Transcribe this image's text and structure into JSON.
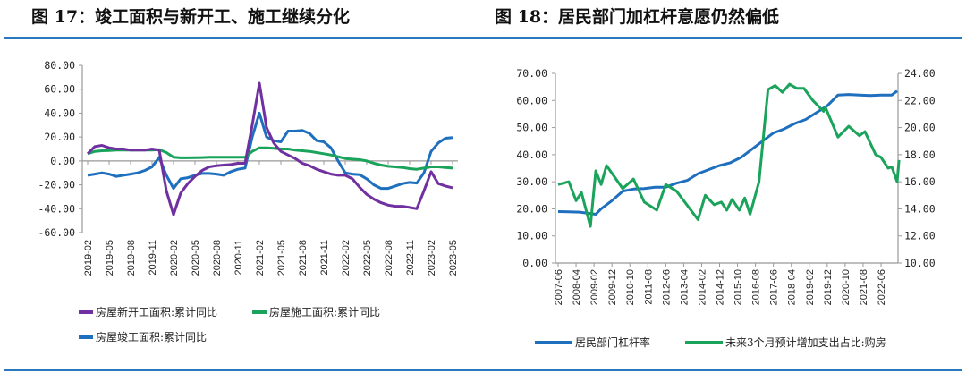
{
  "charts_header": {
    "left_title": "图 17：竣工面积与新开工、施工继续分化",
    "right_title": "图 18：居民部门加杠杆意愿仍然偏低"
  },
  "colors": {
    "rule": "#2a78c0",
    "purple": "#7030a0",
    "green": "#1aa35a",
    "blue": "#1f6fbf"
  },
  "chart_data": [
    {
      "type": "line",
      "title": "竣工面积与新开工、施工继续分化",
      "ylim": [
        -60,
        80
      ],
      "yticks": [
        "80.00",
        "60.00",
        "40.00",
        "20.00",
        "0.00",
        "-20.00",
        "-40.00",
        "-60.00"
      ],
      "x_start": "2019-02",
      "x_tick_labels": [
        "2019-02",
        "2019-05",
        "2019-08",
        "2019-11",
        "2020-02",
        "2020-05",
        "2020-08",
        "2020-11",
        "2021-02",
        "2021-05",
        "2021-08",
        "2021-11",
        "2022-02",
        "2022-05",
        "2022-08",
        "2022-11",
        "2023-02",
        "2023-05"
      ],
      "legend_placement": "bottom",
      "grid": false,
      "series": [
        {
          "name": "房屋新开工面积:累计同比",
          "color": "#7030a0",
          "values": [
            6,
            12,
            13,
            11,
            10,
            10,
            9,
            9,
            9,
            10,
            9,
            -25,
            -45,
            -27,
            -19,
            -13,
            -8,
            -5,
            -4,
            -3.5,
            -3,
            -2,
            -2,
            30,
            65,
            28,
            15,
            8,
            5,
            2,
            -2,
            -4,
            -7,
            -9,
            -11,
            -12,
            -12,
            -15,
            -22,
            -28,
            -32,
            -35,
            -37,
            -38,
            -38,
            -39,
            -40,
            -25,
            -9,
            -19,
            -21,
            -22.5
          ]
        },
        {
          "name": "房屋施工面积:累计同比",
          "color": "#1aa35a",
          "values": [
            6,
            8,
            8.5,
            8.7,
            9,
            9,
            9,
            9,
            9,
            9,
            9.5,
            7,
            3,
            2.6,
            2.6,
            2.7,
            2.8,
            3,
            3,
            3,
            3,
            3,
            3,
            8,
            11,
            11,
            10.5,
            10,
            10,
            9,
            8.5,
            8,
            7,
            6,
            5,
            3.5,
            2,
            1.5,
            1,
            0,
            -2,
            -3.5,
            -4.5,
            -5,
            -5.5,
            -6.5,
            -7,
            -6,
            -5,
            -5,
            -5.5,
            -6
          ]
        },
        {
          "name": "房屋竣工面积:累计同比",
          "color": "#1f6fbf",
          "values": [
            -12,
            -11,
            -10,
            -11,
            -13,
            -12,
            -11,
            -10,
            -8,
            -5,
            3,
            -12,
            -23,
            -15,
            -14,
            -12,
            -10.5,
            -10.5,
            -11,
            -12,
            -9,
            -7,
            -6,
            20,
            40,
            20,
            17,
            16,
            25,
            25,
            25.5,
            23,
            17,
            16,
            11,
            0,
            -10,
            -11,
            -11.5,
            -15,
            -20,
            -23,
            -23,
            -21,
            -19,
            -18,
            -18.5,
            -10,
            8,
            15,
            19,
            19.5
          ]
        }
      ]
    },
    {
      "type": "line",
      "title": "居民部门加杠杆意愿仍然偏低",
      "ylim": [
        0,
        70
      ],
      "y2lim": [
        10,
        24
      ],
      "yticks": [
        "70.00",
        "60.00",
        "50.00",
        "40.00",
        "30.00",
        "20.00",
        "10.00",
        "0.00"
      ],
      "y2ticks": [
        "24.00",
        "22.00",
        "20.00",
        "18.00",
        "16.00",
        "14.00",
        "12.00",
        "10.00"
      ],
      "x_tick_labels": [
        "2007-06",
        "2008-04",
        "2009-02",
        "2009-12",
        "2010-10",
        "2011-08",
        "2012-06",
        "2013-04",
        "2014-02",
        "2014-12",
        "2015-10",
        "2016-08",
        "2017-06",
        "2018-04",
        "2019-02",
        "2019-12",
        "2020-10",
        "2021-08",
        "2022-06"
      ],
      "x_range": [
        "2007-06",
        "2023-04"
      ],
      "legend_placement": "bottom",
      "grid": false,
      "series": [
        {
          "name": "居民部门杠杆率",
          "axis": "left",
          "color": "#1f6fbf",
          "points": [
            [
              "2007-06",
              19
            ],
            [
              "2008-06",
              18.8
            ],
            [
              "2009-03",
              18
            ],
            [
              "2009-06",
              20
            ],
            [
              "2009-12",
              23
            ],
            [
              "2010-06",
              26.5
            ],
            [
              "2010-12",
              27.3
            ],
            [
              "2011-06",
              27.5
            ],
            [
              "2011-12",
              28
            ],
            [
              "2012-06",
              28
            ],
            [
              "2012-12",
              29.5
            ],
            [
              "2013-06",
              30.5
            ],
            [
              "2013-12",
              33
            ],
            [
              "2014-06",
              34.5
            ],
            [
              "2014-12",
              36
            ],
            [
              "2015-06",
              37
            ],
            [
              "2015-12",
              39
            ],
            [
              "2016-06",
              42
            ],
            [
              "2016-12",
              45
            ],
            [
              "2017-06",
              48
            ],
            [
              "2017-12",
              49.5
            ],
            [
              "2018-06",
              51.5
            ],
            [
              "2018-12",
              53
            ],
            [
              "2019-06",
              55.5
            ],
            [
              "2019-12",
              58
            ],
            [
              "2020-06",
              62
            ],
            [
              "2020-12",
              62.2
            ],
            [
              "2021-06",
              62
            ],
            [
              "2021-12",
              61.8
            ],
            [
              "2022-06",
              62
            ],
            [
              "2022-12",
              62
            ],
            [
              "2023-03",
              63.5
            ]
          ]
        },
        {
          "name": "未来3个月预计增加支出占比:购房",
          "axis": "right",
          "color": "#1aa35a",
          "points": [
            [
              "2007-06",
              15.8
            ],
            [
              "2007-12",
              16.0
            ],
            [
              "2008-04",
              14.6
            ],
            [
              "2008-07",
              15.2
            ],
            [
              "2008-12",
              12.7
            ],
            [
              "2009-03",
              16.8
            ],
            [
              "2009-06",
              15.8
            ],
            [
              "2009-09",
              17.2
            ],
            [
              "2010-06",
              15.5
            ],
            [
              "2010-12",
              16.2
            ],
            [
              "2011-06",
              14.5
            ],
            [
              "2012-01",
              13.9
            ],
            [
              "2012-06",
              15.8
            ],
            [
              "2012-12",
              15.3
            ],
            [
              "2013-12",
              13.2
            ],
            [
              "2014-04",
              15.0
            ],
            [
              "2014-09",
              14.3
            ],
            [
              "2015-01",
              14.5
            ],
            [
              "2015-04",
              13.9
            ],
            [
              "2015-07",
              14.7
            ],
            [
              "2015-11",
              13.9
            ],
            [
              "2016-02",
              14.8
            ],
            [
              "2016-05",
              13.6
            ],
            [
              "2016-10",
              16.0
            ],
            [
              "2017-03",
              22.8
            ],
            [
              "2017-07",
              23.1
            ],
            [
              "2017-11",
              22.6
            ],
            [
              "2018-03",
              23.2
            ],
            [
              "2018-07",
              22.9
            ],
            [
              "2018-11",
              22.9
            ],
            [
              "2019-04",
              22.0
            ],
            [
              "2019-10",
              21.2
            ],
            [
              "2019-11",
              21.5
            ],
            [
              "2020-06",
              19.3
            ],
            [
              "2020-12",
              20.1
            ],
            [
              "2021-06",
              19.4
            ],
            [
              "2021-09",
              19.7
            ],
            [
              "2022-03",
              18.0
            ],
            [
              "2022-06",
              17.8
            ],
            [
              "2022-10",
              17.0
            ],
            [
              "2022-12",
              17.1
            ],
            [
              "2023-03",
              16.0
            ],
            [
              "2023-04",
              17.6
            ]
          ]
        }
      ]
    }
  ]
}
